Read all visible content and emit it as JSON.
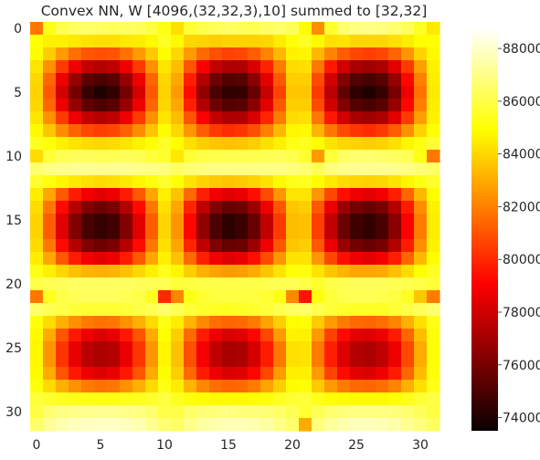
{
  "chart_data": {
    "type": "heatmap",
    "title": "Convex NN, W [4096,(32,32,3),10] summed to [32,32]",
    "xlabel": "",
    "ylabel": "",
    "rows": 32,
    "cols": 32,
    "x_ticks": [
      0,
      5,
      10,
      15,
      20,
      25,
      30
    ],
    "y_ticks": [
      0,
      5,
      10,
      15,
      20,
      25,
      30
    ],
    "colormap": "hot",
    "grid": false,
    "colorbar": {
      "vmin": 73500,
      "vmax": 88800,
      "ticks": [
        74000,
        76000,
        78000,
        80000,
        82000,
        84000,
        86000,
        88000
      ],
      "placement": "right"
    },
    "values": [
      [
        81800,
        85300,
        86100,
        86400,
        86500,
        86400,
        86300,
        86400,
        86300,
        85900,
        85200,
        84200,
        85700,
        86100,
        86300,
        86400,
        86300,
        86200,
        86400,
        86500,
        86300,
        84900,
        82300,
        85600,
        86600,
        86900,
        87000,
        86900,
        86600,
        86300,
        85500,
        84400
      ],
      [
        85000,
        84600,
        84600,
        84400,
        84300,
        84200,
        84200,
        84400,
        84500,
        84800,
        85500,
        84800,
        84000,
        83900,
        83800,
        83900,
        83900,
        83900,
        84000,
        84500,
        85000,
        85500,
        84800,
        84200,
        84300,
        84000,
        84000,
        84000,
        84200,
        84500,
        84900,
        85000
      ],
      [
        84900,
        83800,
        82600,
        81600,
        81000,
        80900,
        81000,
        81700,
        82600,
        83700,
        84900,
        84000,
        82600,
        81500,
        80900,
        80600,
        80700,
        81200,
        82100,
        83300,
        84600,
        84700,
        83300,
        82100,
        81200,
        80700,
        80500,
        80700,
        81400,
        82500,
        83900,
        84800
      ],
      [
        84300,
        82400,
        80400,
        78700,
        77700,
        77400,
        77600,
        78700,
        80400,
        82400,
        84300,
        83400,
        81000,
        79000,
        77700,
        77200,
        77300,
        78200,
        79900,
        81900,
        84100,
        84200,
        81800,
        79600,
        78000,
        77100,
        76900,
        77200,
        78400,
        80400,
        82700,
        84600
      ],
      [
        84000,
        81400,
        78700,
        76700,
        75400,
        75000,
        75300,
        76700,
        78700,
        81400,
        84000,
        82900,
        79800,
        77300,
        75800,
        75200,
        75300,
        76400,
        78500,
        81100,
        83800,
        83800,
        80800,
        78000,
        76200,
        75200,
        74900,
        75300,
        76700,
        79200,
        82000,
        84500
      ],
      [
        83900,
        81100,
        78100,
        75900,
        74500,
        74000,
        74400,
        75900,
        78100,
        81100,
        83900,
        82600,
        79300,
        76600,
        75000,
        74400,
        74500,
        75600,
        77800,
        80600,
        83600,
        83600,
        80400,
        77500,
        75500,
        74300,
        74000,
        74500,
        76000,
        78700,
        81700,
        84400
      ],
      [
        84000,
        81400,
        78700,
        76700,
        75400,
        75000,
        75300,
        76700,
        78700,
        81400,
        84000,
        82900,
        79800,
        77300,
        75800,
        75200,
        75300,
        76400,
        78500,
        81100,
        83800,
        83800,
        80800,
        78000,
        76200,
        75200,
        74900,
        75300,
        76700,
        79200,
        82000,
        84500
      ],
      [
        84300,
        82400,
        80400,
        78700,
        77700,
        77400,
        77600,
        78700,
        80400,
        82400,
        84300,
        83400,
        81000,
        79000,
        77700,
        77200,
        77300,
        78200,
        79900,
        81900,
        84100,
        84200,
        81800,
        79600,
        78000,
        77100,
        76900,
        77200,
        78400,
        80400,
        82700,
        84600
      ],
      [
        84800,
        83600,
        82300,
        81300,
        80700,
        80500,
        80700,
        81300,
        82300,
        83600,
        84900,
        84000,
        82500,
        81200,
        80400,
        80100,
        80300,
        80900,
        82000,
        83300,
        84700,
        84800,
        83200,
        81800,
        80800,
        80300,
        80100,
        80400,
        81200,
        82400,
        83900,
        85000
      ],
      [
        85400,
        85000,
        84600,
        84300,
        84100,
        84000,
        84100,
        84300,
        84600,
        85000,
        85500,
        84900,
        84200,
        83800,
        83600,
        83500,
        83600,
        83800,
        84200,
        84600,
        85200,
        85400,
        84900,
        84300,
        84000,
        83900,
        83800,
        83900,
        84200,
        84700,
        85200,
        85700
      ],
      [
        84100,
        85800,
        86200,
        86300,
        86300,
        86200,
        86200,
        86300,
        86200,
        85800,
        85600,
        84400,
        85700,
        86000,
        86100,
        86100,
        86100,
        86100,
        86200,
        86300,
        86100,
        85600,
        82600,
        85800,
        86400,
        86600,
        86600,
        86500,
        86400,
        86200,
        85200,
        81800
      ],
      [
        86600,
        86900,
        87000,
        87100,
        87100,
        87100,
        87100,
        87100,
        87000,
        86900,
        86800,
        86400,
        86700,
        86800,
        86900,
        86900,
        86900,
        86900,
        86900,
        86900,
        86800,
        86600,
        86200,
        86800,
        87000,
        87100,
        87100,
        87100,
        87000,
        86900,
        86700,
        86500
      ],
      [
        85600,
        85100,
        84700,
        84400,
        84200,
        84100,
        84200,
        84400,
        84700,
        85100,
        85600,
        85000,
        84300,
        83900,
        83700,
        83600,
        83700,
        83900,
        84300,
        84800,
        85300,
        85400,
        84900,
        84400,
        84100,
        84000,
        83900,
        84000,
        84300,
        84700,
        85200,
        85600
      ],
      [
        84500,
        82900,
        81100,
        79700,
        78800,
        78500,
        78700,
        79700,
        81100,
        82900,
        84600,
        83500,
        81500,
        79800,
        78800,
        78400,
        78600,
        79400,
        80800,
        82500,
        84300,
        84300,
        82500,
        80700,
        79400,
        78700,
        78500,
        78800,
        79800,
        81400,
        83300,
        84900
      ],
      [
        84100,
        81800,
        79300,
        77400,
        76200,
        75800,
        76100,
        77400,
        79300,
        81800,
        84200,
        82900,
        79900,
        77600,
        76200,
        75600,
        75800,
        76800,
        78700,
        81000,
        83600,
        83800,
        81100,
        78600,
        76800,
        75900,
        75600,
        76000,
        77400,
        79700,
        82300,
        84600
      ],
      [
        83900,
        81200,
        78400,
        76200,
        74900,
        74500,
        74800,
        76200,
        78400,
        81200,
        84000,
        82500,
        79200,
        76600,
        75000,
        74300,
        74600,
        75600,
        77700,
        80400,
        83400,
        83500,
        80500,
        77700,
        75700,
        74700,
        74400,
        74900,
        76400,
        79000,
        81900,
        84500
      ],
      [
        83900,
        81200,
        78400,
        76200,
        74900,
        74500,
        74800,
        76200,
        78400,
        81200,
        84000,
        82500,
        79200,
        76600,
        75000,
        74300,
        74600,
        75600,
        77700,
        80400,
        83400,
        83500,
        80500,
        77700,
        75700,
        74700,
        74400,
        74900,
        76400,
        79000,
        81900,
        84500
      ],
      [
        84100,
        81800,
        79300,
        77400,
        76200,
        75800,
        76100,
        77400,
        79300,
        81800,
        84200,
        82900,
        79900,
        77600,
        76200,
        75600,
        75800,
        76800,
        78700,
        81000,
        83600,
        83800,
        81100,
        78600,
        76800,
        75900,
        75600,
        76000,
        77400,
        79700,
        82300,
        84600
      ],
      [
        84500,
        82900,
        81100,
        79700,
        78800,
        78500,
        78700,
        79700,
        81100,
        82900,
        84600,
        83500,
        81500,
        79800,
        78800,
        78400,
        78600,
        79400,
        80800,
        82500,
        84300,
        84300,
        82500,
        80700,
        79400,
        78700,
        78500,
        78800,
        79800,
        81400,
        83300,
        84900
      ],
      [
        85200,
        84600,
        84000,
        83500,
        83200,
        83100,
        83200,
        83500,
        84000,
        84600,
        85300,
        84700,
        83800,
        83100,
        82800,
        82600,
        82700,
        83000,
        83600,
        84300,
        85000,
        85100,
        84300,
        83600,
        83200,
        82900,
        82900,
        83000,
        83500,
        84100,
        84900,
        85500
      ],
      [
        86000,
        86200,
        86300,
        86400,
        86400,
        86400,
        86400,
        86400,
        86300,
        86200,
        86200,
        85800,
        85900,
        86000,
        86000,
        86000,
        86000,
        86000,
        86100,
        86200,
        86200,
        86000,
        85600,
        86000,
        86200,
        86300,
        86300,
        86300,
        86200,
        86100,
        86000,
        85800
      ],
      [
        81800,
        85400,
        86000,
        86200,
        86300,
        86300,
        86300,
        86200,
        86000,
        85400,
        80000,
        82100,
        85200,
        85700,
        85900,
        85900,
        85900,
        85900,
        85700,
        85200,
        82200,
        79500,
        85100,
        85800,
        86100,
        86200,
        86200,
        86100,
        85900,
        85400,
        83600,
        81900
      ],
      [
        86500,
        86200,
        86000,
        85800,
        85700,
        85700,
        85700,
        85800,
        86000,
        86200,
        86500,
        86200,
        85800,
        85600,
        85500,
        85400,
        85500,
        85600,
        85800,
        86100,
        86400,
        86500,
        86100,
        85800,
        85600,
        85500,
        85500,
        85500,
        85700,
        86000,
        86300,
        86600
      ],
      [
        85100,
        84100,
        83100,
        82400,
        81900,
        81700,
        81800,
        82400,
        83100,
        84100,
        85200,
        84500,
        83200,
        82200,
        81600,
        81400,
        81500,
        81900,
        82800,
        83800,
        84900,
        85000,
        83700,
        82600,
        81900,
        81500,
        81400,
        81600,
        82100,
        83100,
        84200,
        85300
      ],
      [
        84800,
        83000,
        81000,
        79600,
        78700,
        78300,
        78600,
        79600,
        81000,
        83000,
        84900,
        83800,
        81500,
        79700,
        78700,
        78200,
        78400,
        79200,
        80700,
        82600,
        84600,
        84600,
        82600,
        80600,
        79300,
        78500,
        78300,
        78700,
        79700,
        81400,
        83400,
        85100
      ],
      [
        84700,
        82500,
        80300,
        78600,
        77500,
        77200,
        77400,
        78600,
        80300,
        82500,
        84700,
        83500,
        80900,
        78900,
        77600,
        77100,
        77200,
        78100,
        79700,
        81800,
        84200,
        84300,
        81900,
        79800,
        78300,
        77400,
        77200,
        77600,
        78700,
        80700,
        83000,
        85000
      ],
      [
        84700,
        82500,
        80300,
        78600,
        77500,
        77200,
        77400,
        78600,
        80300,
        82500,
        84700,
        83500,
        80900,
        78900,
        77600,
        77100,
        77200,
        78100,
        79700,
        81800,
        84200,
        84300,
        81900,
        79800,
        78300,
        77400,
        77200,
        77600,
        78700,
        80700,
        83000,
        85000
      ],
      [
        84800,
        83000,
        81000,
        79600,
        78700,
        78300,
        78600,
        79600,
        81000,
        83000,
        84900,
        83800,
        81500,
        79700,
        78700,
        78200,
        78400,
        79200,
        80700,
        82600,
        84600,
        84600,
        82600,
        80600,
        79300,
        78500,
        78300,
        78700,
        79700,
        81400,
        83400,
        85100
      ],
      [
        85100,
        84100,
        83100,
        82400,
        81900,
        81700,
        81800,
        82400,
        83100,
        84100,
        85200,
        84500,
        83200,
        82200,
        81600,
        81400,
        81500,
        81900,
        82800,
        83800,
        84900,
        85000,
        83700,
        82600,
        81900,
        81500,
        81400,
        81600,
        82100,
        83100,
        84200,
        85300
      ],
      [
        85800,
        85600,
        85400,
        85300,
        85200,
        85200,
        85200,
        85300,
        85400,
        85600,
        85900,
        85400,
        85100,
        84900,
        84800,
        84800,
        84800,
        84900,
        85100,
        85400,
        85700,
        85800,
        85300,
        85000,
        84900,
        84800,
        84800,
        84800,
        85000,
        85300,
        85700,
        86000
      ],
      [
        85900,
        86600,
        86900,
        87000,
        87100,
        87100,
        87100,
        87000,
        86900,
        86600,
        86000,
        86000,
        86500,
        86700,
        86800,
        86900,
        86800,
        86800,
        86700,
        86500,
        86200,
        85700,
        86200,
        86600,
        86800,
        86900,
        86900,
        86900,
        86800,
        86600,
        86300,
        85900
      ],
      [
        86500,
        87200,
        87600,
        87800,
        87900,
        87900,
        87900,
        87800,
        87600,
        87200,
        86600,
        86400,
        87000,
        87400,
        87600,
        87700,
        87700,
        87600,
        87400,
        87000,
        86500,
        83000,
        86800,
        87300,
        87600,
        87800,
        87800,
        87700,
        87500,
        87200,
        86800,
        86400
      ]
    ]
  }
}
